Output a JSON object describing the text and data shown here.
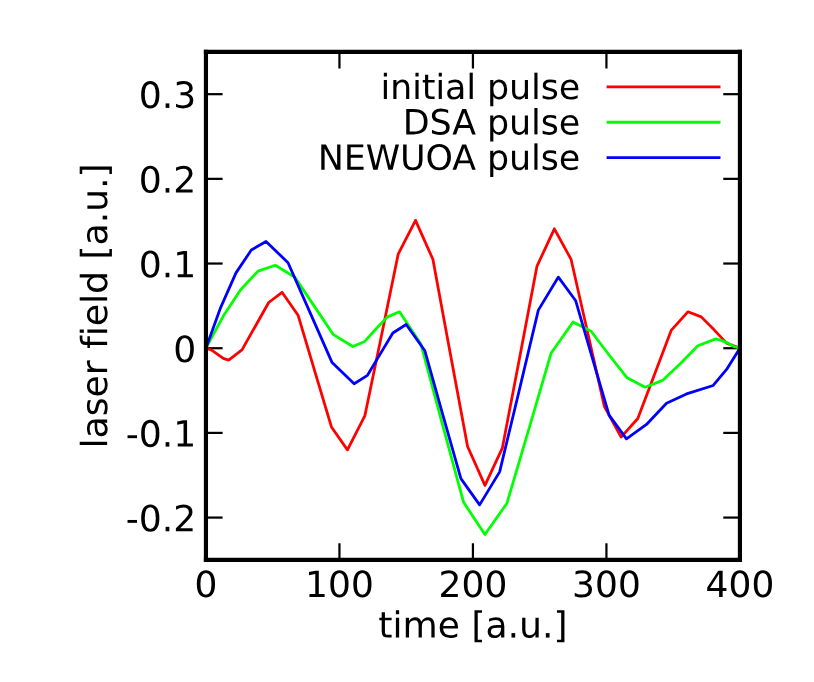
{
  "chart_data": {
    "type": "line",
    "xlabel": "time [a.u.]",
    "ylabel": "laser field [a.u.]",
    "xlim": [
      0,
      400
    ],
    "ylim": [
      -0.25,
      0.35
    ],
    "xticks": [
      0,
      100,
      200,
      300,
      400
    ],
    "yticks": [
      -0.2,
      -0.1,
      0,
      0.1,
      0.2,
      0.3
    ],
    "legend": "top right",
    "grid": false,
    "series": [
      {
        "name": "initial pulse",
        "color": "#ff0000",
        "x": [
          0,
          4,
          8.5,
          13,
          17,
          27,
          37,
          47,
          57,
          69,
          81.5,
          94,
          106,
          119,
          131.5,
          144,
          157,
          170,
          183,
          196,
          209,
          222,
          235,
          248,
          261,
          273.5,
          286,
          298.5,
          311,
          323.5,
          336,
          348.5,
          361,
          371,
          380.5,
          390,
          400
        ],
        "values": [
          0,
          -0.002,
          -0.007,
          -0.012,
          -0.014,
          -0.002,
          0.026,
          0.054,
          0.066,
          0.039,
          -0.027,
          -0.093,
          -0.12,
          -0.08,
          0.015,
          0.111,
          0.151,
          0.105,
          -0.006,
          -0.116,
          -0.162,
          -0.118,
          -0.011,
          0.097,
          0.141,
          0.105,
          0.018,
          -0.069,
          -0.105,
          -0.083,
          -0.031,
          0.021,
          0.043,
          0.037,
          0.022,
          0.006,
          0
        ]
      },
      {
        "name": "DSA pulse",
        "color": "#00ff00",
        "x": [
          0,
          13,
          26,
          39,
          52,
          66.5,
          81,
          95.5,
          110,
          119,
          127.5,
          136,
          145,
          161,
          177,
          193,
          209,
          225.5,
          242,
          258.5,
          275,
          288.5,
          302,
          315.5,
          329,
          342,
          355.5,
          368.5,
          382,
          386.5,
          391,
          395.5,
          400
        ],
        "values": [
          0,
          0.038,
          0.069,
          0.091,
          0.098,
          0.084,
          0.05,
          0.016,
          0.002,
          0.008,
          0.023,
          0.037,
          0.043,
          0.005,
          -0.089,
          -0.182,
          -0.22,
          -0.183,
          -0.095,
          -0.006,
          0.031,
          0.02,
          -0.008,
          -0.035,
          -0.046,
          -0.038,
          -0.018,
          0.003,
          0.011,
          0.009,
          0.006,
          0.002,
          0
        ]
      },
      {
        "name": "NEWUOA pulse",
        "color": "#0000ff",
        "x": [
          0,
          11,
          22.5,
          34,
          45,
          61.5,
          78,
          94.5,
          111,
          121,
          130.5,
          140,
          150,
          164,
          177.5,
          191,
          205,
          220,
          234.5,
          249,
          264,
          277,
          289.5,
          302,
          315,
          330,
          345,
          360,
          380,
          390,
          400
        ],
        "values": [
          0,
          0.048,
          0.089,
          0.116,
          0.126,
          0.101,
          0.042,
          -0.017,
          -0.042,
          -0.032,
          -0.007,
          0.018,
          0.028,
          -0.003,
          -0.079,
          -0.154,
          -0.185,
          -0.146,
          -0.051,
          0.045,
          0.084,
          0.056,
          -0.012,
          -0.079,
          -0.107,
          -0.09,
          -0.065,
          -0.054,
          -0.044,
          -0.025,
          0
        ]
      }
    ]
  }
}
